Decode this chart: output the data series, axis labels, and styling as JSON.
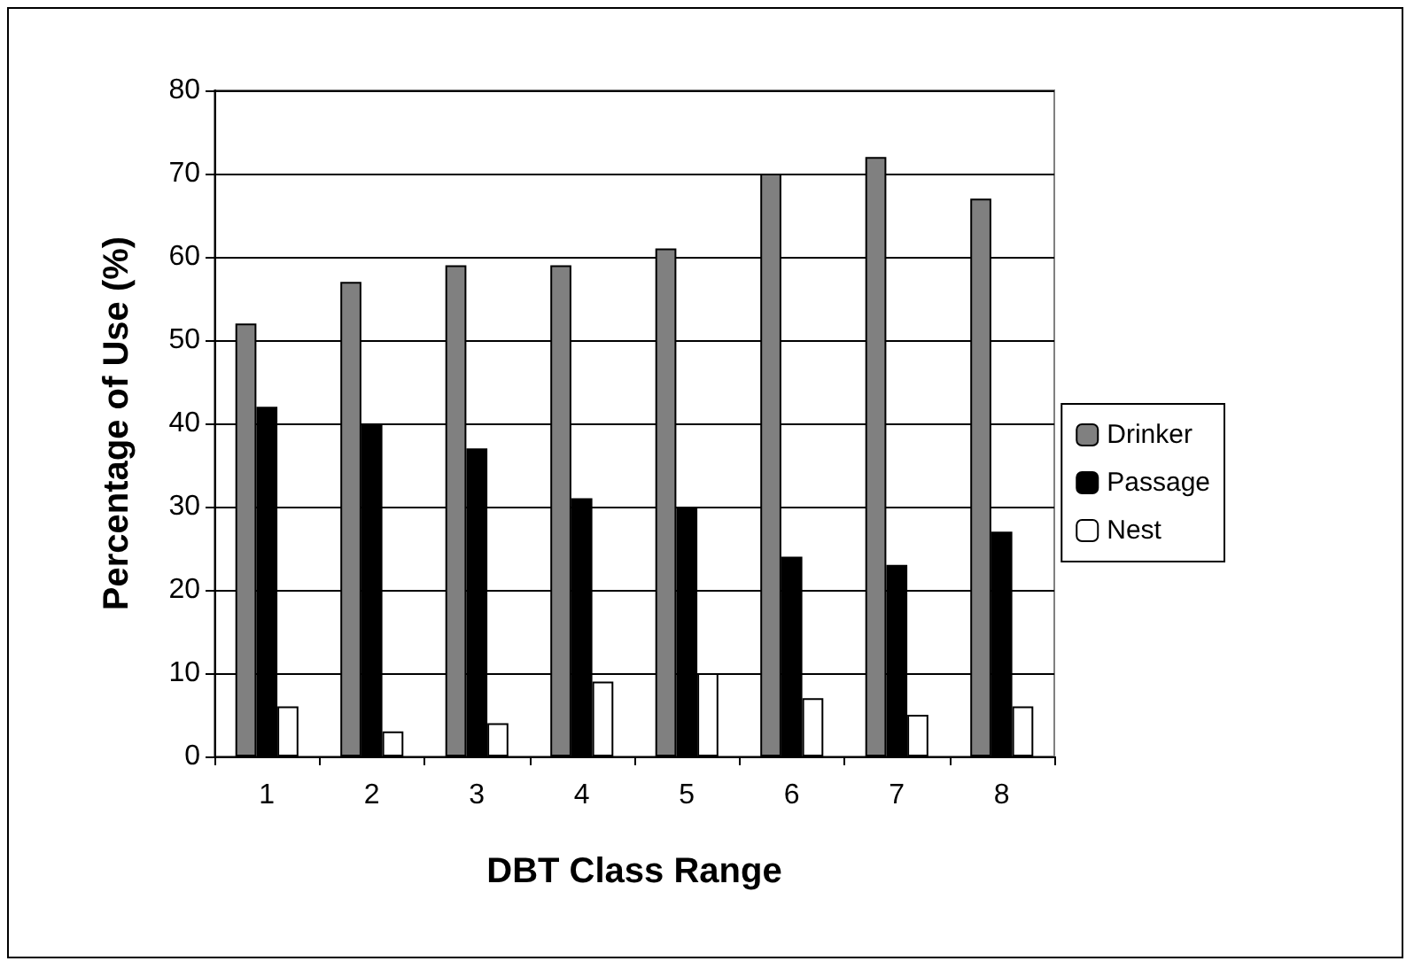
{
  "chart_data": {
    "type": "bar",
    "xlabel": "DBT Class Range",
    "ylabel": "Percentage of Use (%)",
    "categories": [
      "1",
      "2",
      "3",
      "4",
      "5",
      "6",
      "7",
      "8"
    ],
    "series": [
      {
        "name": "Drinker",
        "color": "#808080",
        "values": [
          52,
          57,
          59,
          59,
          61,
          70,
          72,
          67
        ]
      },
      {
        "name": "Passage",
        "color": "#000000",
        "values": [
          42,
          40,
          37,
          31,
          30,
          24,
          23,
          27
        ]
      },
      {
        "name": "Nest",
        "color": "#ffffff",
        "values": [
          6,
          3,
          4,
          9,
          10,
          7,
          5,
          6
        ]
      }
    ],
    "ylim": [
      0,
      80
    ],
    "yticks": [
      0,
      10,
      20,
      30,
      40,
      50,
      60,
      70,
      80
    ],
    "grid": "y",
    "legend": "right"
  }
}
